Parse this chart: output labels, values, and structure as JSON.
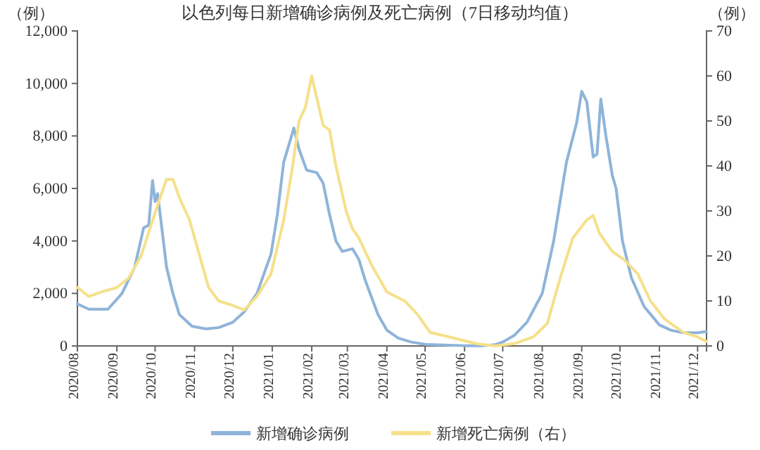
{
  "chart_data": {
    "type": "line",
    "title": "以色列每日新增确诊病例及死亡病例（7日移动均值）",
    "ylabel": "（例）",
    "y2label": "（例）",
    "xlim": [
      "2020-08-01",
      "2021-12-08"
    ],
    "xticks": [
      {
        "value": "2020-08",
        "label": "2020/08"
      },
      {
        "value": "2020-09",
        "label": "2020/09"
      },
      {
        "value": "2020-10",
        "label": "2020/10"
      },
      {
        "value": "2020-11",
        "label": "2020/11"
      },
      {
        "value": "2020-12",
        "label": "2020/12"
      },
      {
        "value": "2021-01",
        "label": "2021/01"
      },
      {
        "value": "2021-02",
        "label": "2021/02"
      },
      {
        "value": "2021-03",
        "label": "2021/03"
      },
      {
        "value": "2021-04",
        "label": "2021/04"
      },
      {
        "value": "2021-05",
        "label": "2021/05"
      },
      {
        "value": "2021-06",
        "label": "2021/06"
      },
      {
        "value": "2021-07",
        "label": "2021/07"
      },
      {
        "value": "2021-08",
        "label": "2021/08"
      },
      {
        "value": "2021-09",
        "label": "2021/09"
      },
      {
        "value": "2021-10",
        "label": "2021/10"
      },
      {
        "value": "2021-11",
        "label": "2021/11"
      },
      {
        "value": "2021-12",
        "label": "2021/12"
      }
    ],
    "ylim": [
      0,
      12000
    ],
    "yticks": [
      {
        "value": 0,
        "label": "0"
      },
      {
        "value": 2000,
        "label": "2,000"
      },
      {
        "value": 4000,
        "label": "4,000"
      },
      {
        "value": 6000,
        "label": "6,000"
      },
      {
        "value": 8000,
        "label": "8,000"
      },
      {
        "value": 10000,
        "label": "10,000"
      },
      {
        "value": 12000,
        "label": "12,000"
      }
    ],
    "y2lim": [
      0,
      70
    ],
    "y2ticks": [
      0,
      10,
      20,
      30,
      40,
      50,
      60,
      70
    ],
    "legend": "bottom",
    "grid": false,
    "marker": "none",
    "line_style": "solid",
    "series": [
      {
        "name": "新增确诊病例",
        "color": "#8fb4d9",
        "x": [
          "2020-08-01",
          "2020-08-10",
          "2020-08-25",
          "2020-09-05",
          "2020-09-15",
          "2020-09-22",
          "2020-09-26",
          "2020-09-29",
          "2020-10-01",
          "2020-10-03",
          "2020-10-05",
          "2020-10-10",
          "2020-10-15",
          "2020-10-20",
          "2020-10-30",
          "2020-11-10",
          "2020-11-20",
          "2020-12-01",
          "2020-12-10",
          "2020-12-20",
          "2020-12-31",
          "2021-01-05",
          "2021-01-10",
          "2021-01-18",
          "2021-01-22",
          "2021-01-28",
          "2021-02-05",
          "2021-02-10",
          "2021-02-15",
          "2021-02-20",
          "2021-02-25",
          "2021-03-05",
          "2021-03-10",
          "2021-03-15",
          "2021-03-25",
          "2021-04-01",
          "2021-04-10",
          "2021-04-20",
          "2021-05-01",
          "2021-06-01",
          "2021-06-15",
          "2021-06-25",
          "2021-07-01",
          "2021-07-10",
          "2021-07-20",
          "2021-08-01",
          "2021-08-10",
          "2021-08-20",
          "2021-08-28",
          "2021-09-01",
          "2021-09-05",
          "2021-09-10",
          "2021-09-13",
          "2021-09-16",
          "2021-09-20",
          "2021-09-25",
          "2021-09-28",
          "2021-10-03",
          "2021-10-10",
          "2021-10-20",
          "2021-11-01",
          "2021-11-10",
          "2021-11-20",
          "2021-12-01",
          "2021-12-08"
        ],
        "values": [
          1600,
          1400,
          1400,
          2000,
          3000,
          4500,
          4600,
          6300,
          5500,
          5800,
          5000,
          3000,
          2000,
          1200,
          750,
          650,
          700,
          900,
          1300,
          2000,
          3500,
          5000,
          7000,
          8300,
          7500,
          6700,
          6600,
          6200,
          5000,
          4000,
          3600,
          3700,
          3300,
          2500,
          1200,
          600,
          300,
          150,
          60,
          10,
          10,
          50,
          150,
          400,
          900,
          2000,
          4000,
          7000,
          8500,
          9700,
          9300,
          7200,
          7300,
          9400,
          8000,
          6500,
          6000,
          4000,
          2600,
          1500,
          800,
          600,
          500,
          500,
          550
        ]
      },
      {
        "name": "新增死亡病例（右）",
        "color": "#f5e08a",
        "axis": "y2",
        "x": [
          "2020-08-01",
          "2020-08-10",
          "2020-08-20",
          "2020-09-01",
          "2020-09-10",
          "2020-09-20",
          "2020-09-28",
          "2020-10-05",
          "2020-10-10",
          "2020-10-15",
          "2020-10-20",
          "2020-10-28",
          "2020-11-05",
          "2020-11-12",
          "2020-11-20",
          "2020-12-01",
          "2020-12-10",
          "2020-12-20",
          "2020-12-31",
          "2021-01-10",
          "2021-01-17",
          "2021-01-22",
          "2021-01-27",
          "2021-02-01",
          "2021-02-05",
          "2021-02-10",
          "2021-02-15",
          "2021-02-20",
          "2021-02-28",
          "2021-03-05",
          "2021-03-10",
          "2021-03-20",
          "2021-04-01",
          "2021-04-15",
          "2021-04-25",
          "2021-05-05",
          "2021-05-20",
          "2021-06-10",
          "2021-06-25",
          "2021-07-10",
          "2021-07-25",
          "2021-08-05",
          "2021-08-15",
          "2021-08-25",
          "2021-09-05",
          "2021-09-10",
          "2021-09-15",
          "2021-09-25",
          "2021-10-05",
          "2021-10-15",
          "2021-10-25",
          "2021-11-05",
          "2021-11-20",
          "2021-12-01",
          "2021-12-08"
        ],
        "values": [
          13,
          11,
          12,
          13,
          15,
          20,
          27,
          33,
          37,
          37,
          33,
          28,
          20,
          13,
          10,
          9,
          8,
          11,
          16,
          28,
          40,
          50,
          53,
          60,
          55,
          49,
          48,
          40,
          30,
          26,
          24,
          18,
          12,
          10,
          7,
          3,
          2,
          0.5,
          0,
          0.5,
          2,
          5,
          15,
          24,
          28,
          29,
          25,
          21,
          19,
          16,
          10,
          6,
          3,
          2,
          1
        ]
      }
    ]
  }
}
